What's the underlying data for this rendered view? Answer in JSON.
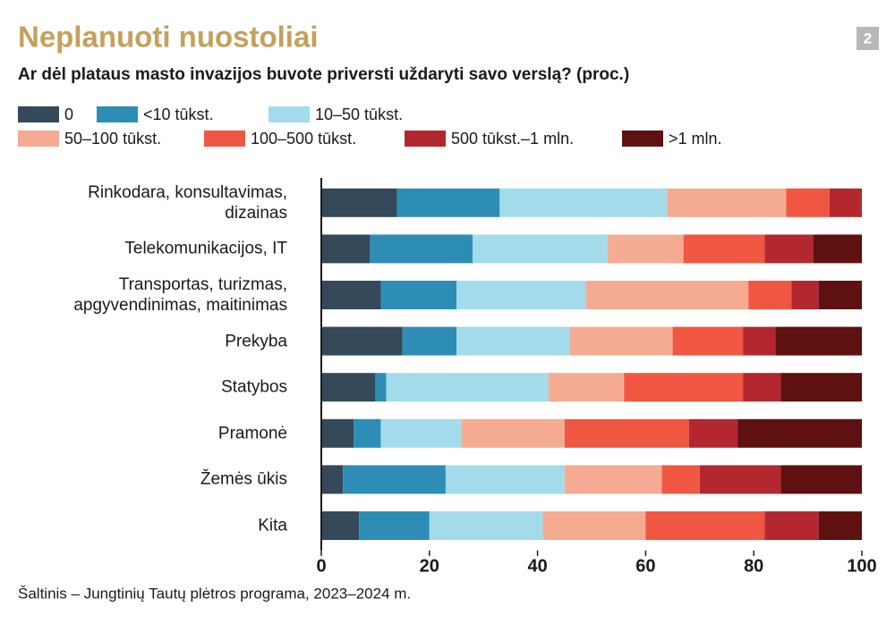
{
  "badge": "2",
  "chart_data": {
    "type": "bar",
    "orientation": "horizontal",
    "stacked": true,
    "title": "Neplanuoti nuostoliai",
    "subtitle": "Ar dėl plataus masto invazijos buvote priversti uždaryti savo verslą? (proc.)",
    "source": "Šaltinis – Jungtinių Tautų plėtros programa, 2023–2024 m.",
    "categories": [
      "Rinkodara, konsultavimas,\ndizainas",
      "Telekomunikacijos, IT",
      "Transportas, turizmas,\napgyvendinimas, maitinimas",
      "Prekyba",
      "Statybos",
      "Pramonė",
      "Žemės ūkis",
      "Kita"
    ],
    "series": [
      {
        "name": "0",
        "color": "#34495a",
        "values": [
          14,
          9,
          11,
          15,
          10,
          6,
          4,
          7
        ]
      },
      {
        "name": "<10 tūkst.",
        "color": "#2e8db5",
        "values": [
          19,
          19,
          14,
          10,
          2,
          5,
          19,
          13
        ]
      },
      {
        "name": "10–50 tūkst.",
        "color": "#a3dbeb",
        "values": [
          31,
          25,
          24,
          21,
          30,
          15,
          22,
          21
        ]
      },
      {
        "name": "50–100 tūkst.",
        "color": "#f5ab92",
        "values": [
          22,
          14,
          30,
          19,
          14,
          19,
          18,
          19
        ]
      },
      {
        "name": "100–500 tūkst.",
        "color": "#ef5742",
        "values": [
          8,
          15,
          8,
          13,
          22,
          23,
          7,
          22
        ]
      },
      {
        "name": "500 tūkst.–1 mln.",
        "color": "#b3282f",
        "values": [
          6,
          9,
          5,
          6,
          7,
          9,
          15,
          10
        ]
      },
      {
        "name": ">1 mln.",
        "color": "#5e1110",
        "values": [
          0,
          9,
          8,
          16,
          15,
          23,
          15,
          8
        ]
      }
    ],
    "xlim": [
      0,
      100
    ],
    "xticks": [
      0,
      20,
      40,
      60,
      80,
      100
    ]
  }
}
